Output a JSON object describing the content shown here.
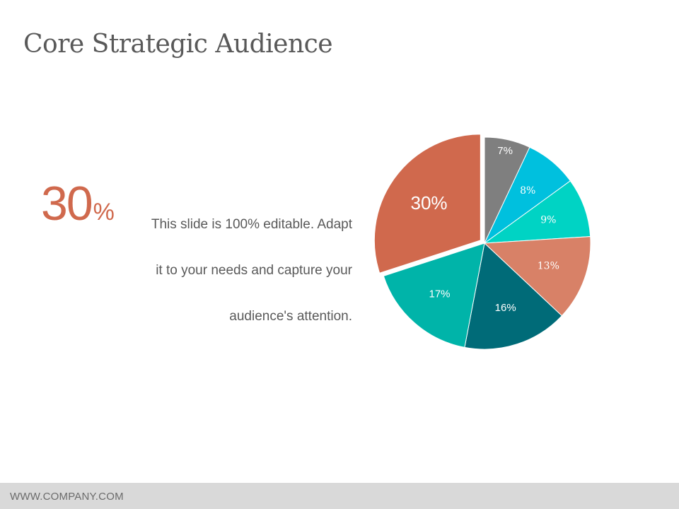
{
  "slide": {
    "title": "Core Strategic Audience",
    "highlight": {
      "value": "30",
      "unit": "%"
    },
    "body_lines": [
      "This slide is 100% editable. Adapt",
      "it to your needs and capture your",
      "audience's attention."
    ],
    "footer": "WWW.COMPANY.COM"
  },
  "chart_data": {
    "type": "pie",
    "title": "",
    "slices": [
      {
        "label": "7%",
        "value": 7,
        "color": "#7f7f7f"
      },
      {
        "label": "8%",
        "value": 8,
        "color": "#00c0de"
      },
      {
        "label": "9%",
        "value": 9,
        "color": "#00d3c4"
      },
      {
        "label": "13%",
        "value": 13,
        "color": "#d88167"
      },
      {
        "label": "16%",
        "value": 16,
        "color": "#006b78"
      },
      {
        "label": "17%",
        "value": 17,
        "color": "#00b4a9"
      },
      {
        "label": "30%",
        "value": 30,
        "color": "#d0694d",
        "exploded": true
      }
    ],
    "legend": "none"
  }
}
